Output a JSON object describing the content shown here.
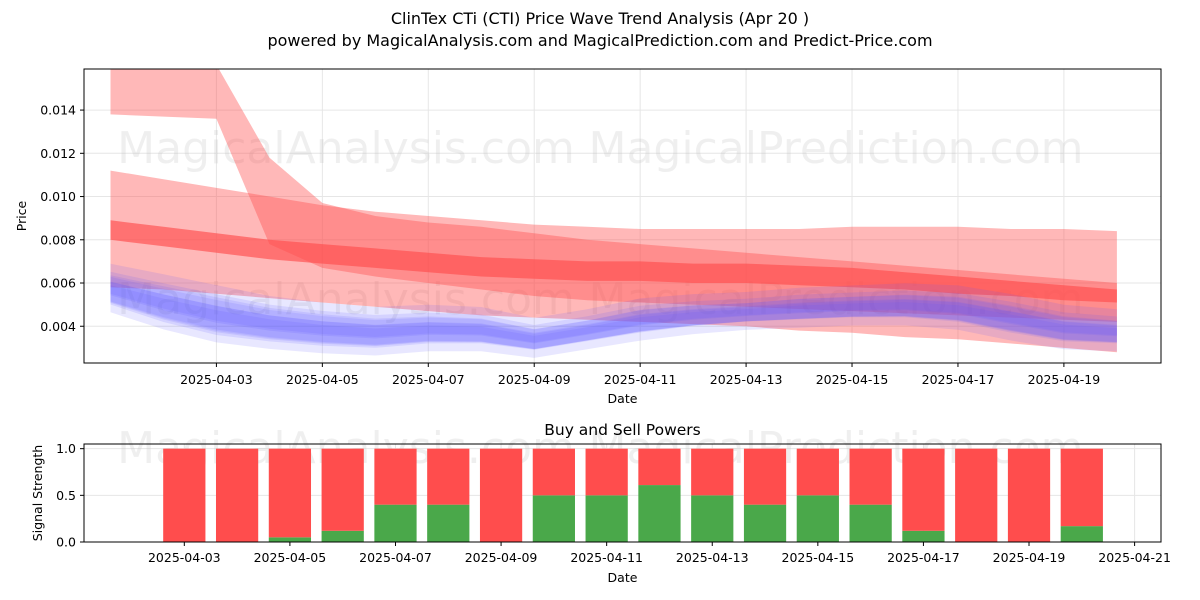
{
  "header": {
    "title": "ClinTex CTi (CTI) Price Wave Trend Analysis (Apr 20 )",
    "subtitle": "powered by MagicalAnalysis.com and MagicalPrediction.com and Predict-Price.com"
  },
  "watermarks": [
    "MagicalAnalysis.com",
    "MagicalPrediction.com"
  ],
  "colors": {
    "sell_band": "#ff4d4d",
    "buy_band": "#5a52ff",
    "buy_power": "#4aa84a",
    "sell_power": "#ff4d4d",
    "grid": "#e6e6e6"
  },
  "chart_data": [
    {
      "type": "area",
      "xlabel": "Date",
      "ylabel": "Price",
      "x_ticks": [
        "2025-04-03",
        "2025-04-05",
        "2025-04-07",
        "2025-04-09",
        "2025-04-11",
        "2025-04-13",
        "2025-04-15",
        "2025-04-17",
        "2025-04-19"
      ],
      "y_ticks": [
        "0.004",
        "0.006",
        "0.008",
        "0.010",
        "0.012",
        "0.014"
      ],
      "xlim": [
        "2025-03-31T12:00",
        "2025-04-20T20:00"
      ],
      "ylim": [
        0.0023,
        0.0159
      ],
      "grid": true,
      "series": [
        {
          "role": "sell-band-wide",
          "x": [
            "2025-04-01",
            "2025-04-02",
            "2025-04-03",
            "2025-04-04",
            "2025-04-05",
            "2025-04-06",
            "2025-04-07",
            "2025-04-08",
            "2025-04-09",
            "2025-04-10",
            "2025-04-11",
            "2025-04-12",
            "2025-04-13",
            "2025-04-14",
            "2025-04-15",
            "2025-04-16",
            "2025-04-17",
            "2025-04-18",
            "2025-04-19",
            "2025-04-20"
          ],
          "upper": [
            0.0112,
            0.0108,
            0.0104,
            0.01,
            0.0096,
            0.0093,
            0.0091,
            0.0089,
            0.0087,
            0.0086,
            0.0085,
            0.0085,
            0.0085,
            0.0085,
            0.0086,
            0.0086,
            0.0086,
            0.0085,
            0.0085,
            0.0084
          ],
          "lower": [
            0.0058,
            0.0057,
            0.0055,
            0.0053,
            0.0051,
            0.0049,
            0.0047,
            0.0045,
            0.0044,
            0.0043,
            0.0042,
            0.0041,
            0.004,
            0.0038,
            0.0037,
            0.0035,
            0.0034,
            0.0032,
            0.003,
            0.0028
          ]
        },
        {
          "role": "sell-band-steep",
          "x": [
            "2025-04-01",
            "2025-04-02",
            "2025-04-03",
            "2025-04-04",
            "2025-04-05",
            "2025-04-06",
            "2025-04-07",
            "2025-04-08",
            "2025-04-09",
            "2025-04-10",
            "2025-04-11",
            "2025-04-12",
            "2025-04-13",
            "2025-04-14",
            "2025-04-15",
            "2025-04-16",
            "2025-04-17",
            "2025-04-18",
            "2025-04-19",
            "2025-04-20"
          ],
          "upper": [
            0.0165,
            0.0163,
            0.0161,
            0.0118,
            0.0097,
            0.0091,
            0.0088,
            0.0086,
            0.0083,
            0.008,
            0.0078,
            0.0076,
            0.0074,
            0.0072,
            0.007,
            0.0068,
            0.0066,
            0.0064,
            0.0062,
            0.006
          ],
          "lower": [
            0.0138,
            0.0137,
            0.0136,
            0.0078,
            0.0067,
            0.0063,
            0.006,
            0.0057,
            0.0054,
            0.0052,
            0.0051,
            0.005,
            0.0049,
            0.0048,
            0.0047,
            0.0046,
            0.0045,
            0.0044,
            0.0043,
            0.0042
          ]
        },
        {
          "role": "sell-band-core",
          "x": [
            "2025-04-01",
            "2025-04-02",
            "2025-04-03",
            "2025-04-04",
            "2025-04-05",
            "2025-04-06",
            "2025-04-07",
            "2025-04-08",
            "2025-04-09",
            "2025-04-10",
            "2025-04-11",
            "2025-04-12",
            "2025-04-13",
            "2025-04-14",
            "2025-04-15",
            "2025-04-16",
            "2025-04-17",
            "2025-04-18",
            "2025-04-19",
            "2025-04-20"
          ],
          "upper": [
            0.0089,
            0.0086,
            0.0083,
            0.008,
            0.0078,
            0.0076,
            0.0074,
            0.0072,
            0.0071,
            0.007,
            0.007,
            0.0069,
            0.0069,
            0.0068,
            0.0067,
            0.0065,
            0.0063,
            0.0061,
            0.0059,
            0.0057
          ],
          "lower": [
            0.008,
            0.0077,
            0.0074,
            0.0071,
            0.0069,
            0.0067,
            0.0065,
            0.0063,
            0.0062,
            0.0061,
            0.0061,
            0.006,
            0.006,
            0.0059,
            0.0058,
            0.0057,
            0.0055,
            0.0054,
            0.0052,
            0.0051
          ]
        },
        {
          "role": "buy-band",
          "x": [
            "2025-04-01",
            "2025-04-02",
            "2025-04-03",
            "2025-04-04",
            "2025-04-05",
            "2025-04-06",
            "2025-04-07",
            "2025-04-08",
            "2025-04-09",
            "2025-04-10",
            "2025-04-11",
            "2025-04-12",
            "2025-04-13",
            "2025-04-14",
            "2025-04-15",
            "2025-04-16",
            "2025-04-17",
            "2025-04-18",
            "2025-04-19",
            "2025-04-20"
          ],
          "upper": [
            0.0066,
            0.0061,
            0.0056,
            0.0051,
            0.0048,
            0.0046,
            0.0047,
            0.0046,
            0.0041,
            0.0045,
            0.005,
            0.0052,
            0.0053,
            0.0055,
            0.0056,
            0.0057,
            0.0056,
            0.0052,
            0.0047,
            0.0045
          ],
          "lower": [
            0.0048,
            0.004,
            0.0034,
            0.0031,
            0.0029,
            0.0028,
            0.003,
            0.003,
            0.0027,
            0.0031,
            0.0035,
            0.0038,
            0.004,
            0.0041,
            0.0042,
            0.0042,
            0.004,
            0.0035,
            0.0031,
            0.003
          ]
        }
      ]
    },
    {
      "type": "bar",
      "title": "Buy and Sell Powers",
      "xlabel": "Date",
      "ylabel": "Signal Strength",
      "x_ticks": [
        "2025-04-03",
        "2025-04-05",
        "2025-04-07",
        "2025-04-09",
        "2025-04-11",
        "2025-04-13",
        "2025-04-15",
        "2025-04-17",
        "2025-04-19",
        "2025-04-21"
      ],
      "y_ticks": [
        "0.0",
        "0.5",
        "1.0"
      ],
      "ylim": [
        0,
        1.05
      ],
      "categories": [
        "2025-04-03",
        "2025-04-04",
        "2025-04-05",
        "2025-04-06",
        "2025-04-07",
        "2025-04-08",
        "2025-04-09",
        "2025-04-10",
        "2025-04-11",
        "2025-04-12",
        "2025-04-13",
        "2025-04-14",
        "2025-04-15",
        "2025-04-16",
        "2025-04-17",
        "2025-04-18",
        "2025-04-19",
        "2025-04-20"
      ],
      "series": [
        {
          "role": "buy",
          "values": [
            0,
            0,
            0.05,
            0.12,
            0.4,
            0.4,
            0,
            0.5,
            0.5,
            0.61,
            0.5,
            0.4,
            0.5,
            0.4,
            0.12,
            0,
            0,
            0.17
          ]
        },
        {
          "role": "sell",
          "values": [
            1,
            1,
            0.95,
            0.88,
            0.6,
            0.6,
            1,
            0.5,
            0.5,
            0.39,
            0.5,
            0.6,
            0.5,
            0.6,
            0.88,
            1,
            1,
            0.83
          ]
        }
      ]
    }
  ]
}
